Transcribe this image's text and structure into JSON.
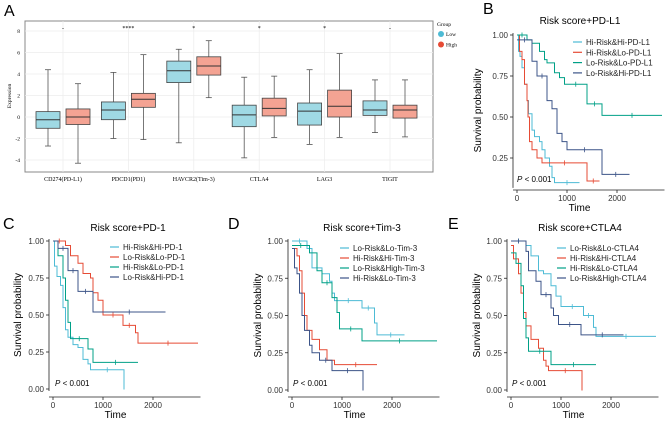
{
  "chart_data": [
    {
      "panel": "A",
      "type": "box",
      "ylabel": "Expression",
      "ylim": [
        -5,
        9
      ],
      "yticks": [
        -4,
        -2,
        0,
        2,
        4,
        6,
        8
      ],
      "grid": true,
      "legend": {
        "title": "Group",
        "placement": "right",
        "entries": [
          {
            "name": "Low",
            "color": "#4dbbd5"
          },
          {
            "name": "High",
            "color": "#e64b35"
          }
        ]
      },
      "box_colors": {
        "Low": "#9fd9e4",
        "High": "#f4a393"
      },
      "categories": [
        "CD274(PD-L1)",
        "PDCD1(PD1)",
        "HAVCR2(Tim-3)",
        "CTLA4",
        "LAG3",
        "TIGIT"
      ],
      "significance": [
        "-",
        "****",
        "*",
        "*",
        "*",
        "-"
      ],
      "series": [
        {
          "name": "Low",
          "stats": [
            [
              -2.7,
              -1.05,
              -0.25,
              0.5,
              4.4
            ],
            [
              -2.0,
              -0.25,
              0.65,
              1.4,
              4.15
            ],
            [
              -2.4,
              3.2,
              4.3,
              5.2,
              6.3
            ],
            [
              -3.8,
              -0.9,
              0.2,
              1.1,
              3.7
            ],
            [
              -2.55,
              -0.75,
              0.55,
              1.3,
              4.4
            ],
            [
              -1.45,
              0.15,
              0.65,
              1.5,
              3.45
            ]
          ]
        },
        {
          "name": "High",
          "stats": [
            [
              -4.3,
              -0.7,
              0.0,
              0.75,
              3.1
            ],
            [
              -2.1,
              0.9,
              1.65,
              2.2,
              5.8
            ],
            [
              1.8,
              3.9,
              4.75,
              5.6,
              7.1
            ],
            [
              -1.9,
              0.1,
              0.8,
              1.75,
              3.8
            ],
            [
              -1.9,
              0.0,
              1.0,
              2.5,
              5.9
            ],
            [
              -1.85,
              -0.1,
              0.65,
              1.1,
              3.45
            ]
          ]
        }
      ]
    },
    {
      "panel": "B",
      "type": "line",
      "title": "Risk score+PD-L1",
      "xlabel": "Time",
      "ylabel": "Survival probability",
      "xticks": [
        0,
        1000,
        2000
      ],
      "yticks": [
        0.25,
        0.5,
        0.75,
        1.0
      ],
      "ylim": [
        0.08,
        1.0
      ],
      "pvalue": "< 0.001",
      "pvalue_label": "P",
      "legend_placement": "top-right",
      "series": [
        {
          "name": "Hi-Risk&Hi-PD-L1",
          "color": "#4dbbd5",
          "end": 1250,
          "steps": [
            [
              0,
              1
            ],
            [
              30,
              0.9
            ],
            [
              60,
              0.87
            ],
            [
              100,
              0.8
            ],
            [
              150,
              0.7
            ],
            [
              200,
              0.6
            ],
            [
              230,
              0.52
            ],
            [
              300,
              0.42
            ],
            [
              350,
              0.38
            ],
            [
              450,
              0.35
            ],
            [
              500,
              0.3
            ],
            [
              560,
              0.25
            ],
            [
              650,
              0.2
            ],
            [
              700,
              0.13
            ],
            [
              750,
              0.1
            ]
          ]
        },
        {
          "name": "Hi-Risk&Lo-PD-L1",
          "color": "#e64b35",
          "end": 1650,
          "steps": [
            [
              0,
              1
            ],
            [
              50,
              0.9
            ],
            [
              100,
              0.85
            ],
            [
              150,
              0.7
            ],
            [
              200,
              0.6
            ],
            [
              220,
              0.5
            ],
            [
              250,
              0.35
            ],
            [
              300,
              0.3
            ],
            [
              400,
              0.25
            ],
            [
              500,
              0.22
            ],
            [
              1400,
              0.11
            ]
          ]
        },
        {
          "name": "Lo-Risk&Lo-PD-L1",
          "color": "#00a087",
          "end": 2900,
          "steps": [
            [
              0,
              1
            ],
            [
              200,
              0.97
            ],
            [
              300,
              0.95
            ],
            [
              450,
              0.9
            ],
            [
              550,
              0.85
            ],
            [
              600,
              0.83
            ],
            [
              750,
              0.77
            ],
            [
              850,
              0.74
            ],
            [
              950,
              0.7
            ],
            [
              1400,
              0.58
            ],
            [
              1700,
              0.51
            ]
          ]
        },
        {
          "name": "Lo-Risk&Hi-PD-L1",
          "color": "#3c5488",
          "end": 2250,
          "steps": [
            [
              0,
              0.97
            ],
            [
              300,
              0.84
            ],
            [
              400,
              0.75
            ],
            [
              600,
              0.6
            ],
            [
              700,
              0.55
            ],
            [
              800,
              0.4
            ],
            [
              900,
              0.35
            ],
            [
              1000,
              0.3
            ],
            [
              1700,
              0.15
            ]
          ]
        }
      ]
    },
    {
      "panel": "C",
      "type": "line",
      "title": "Risk score+PD-1",
      "xlabel": "Time",
      "ylabel": "Survival probability",
      "xticks": [
        0,
        1000,
        2000
      ],
      "yticks": [
        0,
        0.25,
        0.5,
        0.75,
        1.0
      ],
      "ylim": [
        0,
        1.0
      ],
      "pvalue": "< 0.001",
      "pvalue_label": "P",
      "legend_placement": "top-right",
      "series": [
        {
          "name": "Hi-Risk&Hi-PD-1",
          "color": "#4dbbd5",
          "end": 1430,
          "steps": [
            [
              0,
              1
            ],
            [
              30,
              0.83
            ],
            [
              80,
              0.76
            ],
            [
              150,
              0.7
            ],
            [
              200,
              0.55
            ],
            [
              250,
              0.4
            ],
            [
              300,
              0.35
            ],
            [
              400,
              0.3
            ],
            [
              500,
              0.28
            ],
            [
              600,
              0.2
            ],
            [
              700,
              0.17
            ],
            [
              750,
              0.13
            ],
            [
              1420,
              0.0
            ]
          ]
        },
        {
          "name": "Lo-Risk&Lo-PD-1",
          "color": "#e64b35",
          "end": 2900,
          "steps": [
            [
              0,
              1
            ],
            [
              250,
              0.97
            ],
            [
              350,
              0.9
            ],
            [
              500,
              0.85
            ],
            [
              600,
              0.78
            ],
            [
              750,
              0.75
            ],
            [
              800,
              0.65
            ],
            [
              900,
              0.6
            ],
            [
              1000,
              0.5
            ],
            [
              1400,
              0.43
            ],
            [
              1650,
              0.38
            ],
            [
              1700,
              0.31
            ]
          ]
        },
        {
          "name": "Hi-Risk&Lo-PD-1",
          "color": "#00a087",
          "end": 1700,
          "steps": [
            [
              0,
              1
            ],
            [
              100,
              0.9
            ],
            [
              200,
              0.75
            ],
            [
              250,
              0.6
            ],
            [
              300,
              0.45
            ],
            [
              350,
              0.34
            ],
            [
              700,
              0.27
            ],
            [
              800,
              0.18
            ]
          ]
        },
        {
          "name": "Lo-Risk&Hi-PD-1",
          "color": "#3c5488",
          "end": 2250,
          "steps": [
            [
              0,
              1
            ],
            [
              100,
              0.95
            ],
            [
              300,
              0.8
            ],
            [
              500,
              0.66
            ],
            [
              800,
              0.52
            ]
          ]
        }
      ]
    },
    {
      "panel": "D",
      "type": "line",
      "title": "Risk score+Tim-3",
      "xlabel": "Time",
      "ylabel": "Survival probability",
      "xticks": [
        0,
        1000,
        2000
      ],
      "yticks": [
        0,
        0.25,
        0.5,
        0.75,
        1.0
      ],
      "ylim": [
        0,
        1.0
      ],
      "pvalue": "< 0.001",
      "pvalue_label": "P",
      "legend_placement": "top-right",
      "series": [
        {
          "name": "Lo-Risk&Lo-Tim-3",
          "color": "#4dbbd5",
          "end": 2250,
          "steps": [
            [
              0,
              1
            ],
            [
              300,
              0.95
            ],
            [
              400,
              0.82
            ],
            [
              600,
              0.78
            ],
            [
              750,
              0.73
            ],
            [
              800,
              0.65
            ],
            [
              850,
              0.6
            ],
            [
              1400,
              0.55
            ],
            [
              1650,
              0.45
            ],
            [
              1700,
              0.37
            ]
          ]
        },
        {
          "name": "Hi-Risk&Hi-Tim-3",
          "color": "#e64b35",
          "end": 1700,
          "steps": [
            [
              0,
              0.95
            ],
            [
              100,
              0.9
            ],
            [
              150,
              0.8
            ],
            [
              200,
              0.65
            ],
            [
              250,
              0.5
            ],
            [
              300,
              0.4
            ],
            [
              400,
              0.34
            ],
            [
              550,
              0.27
            ],
            [
              700,
              0.2
            ],
            [
              850,
              0.17
            ]
          ]
        },
        {
          "name": "Lo-Risk&High-Tim-3",
          "color": "#00a087",
          "end": 2900,
          "steps": [
            [
              0,
              0.97
            ],
            [
              350,
              0.92
            ],
            [
              500,
              0.8
            ],
            [
              600,
              0.72
            ],
            [
              800,
              0.62
            ],
            [
              900,
              0.52
            ],
            [
              950,
              0.41
            ],
            [
              1400,
              0.33
            ]
          ]
        },
        {
          "name": "Hi-Risk&Lo-Tim-3",
          "color": "#3c5488",
          "end": 1430,
          "steps": [
            [
              0,
              0.95
            ],
            [
              50,
              0.82
            ],
            [
              100,
              0.78
            ],
            [
              150,
              0.65
            ],
            [
              200,
              0.5
            ],
            [
              250,
              0.4
            ],
            [
              350,
              0.3
            ],
            [
              400,
              0.25
            ],
            [
              550,
              0.2
            ],
            [
              800,
              0.13
            ],
            [
              1420,
              0.0
            ]
          ]
        }
      ]
    },
    {
      "panel": "E",
      "type": "line",
      "title": "Risk score+CTLA4",
      "xlabel": "Time",
      "ylabel": "Survival probability",
      "xticks": [
        0,
        1000,
        2000
      ],
      "yticks": [
        0,
        0.25,
        0.5,
        0.75,
        1.0
      ],
      "ylim": [
        0,
        1.0
      ],
      "pvalue": "< 0.001",
      "pvalue_label": "P",
      "legend_placement": "top-right",
      "series": [
        {
          "name": "Lo-Risk&Lo-CTLA4",
          "color": "#4dbbd5",
          "end": 2900,
          "steps": [
            [
              0,
              1
            ],
            [
              300,
              0.97
            ],
            [
              400,
              0.9
            ],
            [
              550,
              0.8
            ],
            [
              650,
              0.78
            ],
            [
              800,
              0.7
            ],
            [
              900,
              0.63
            ],
            [
              1000,
              0.56
            ],
            [
              1450,
              0.5
            ],
            [
              1650,
              0.42
            ],
            [
              1700,
              0.36
            ]
          ]
        },
        {
          "name": "Hi-Risk&Hi-CTLA4",
          "color": "#e64b35",
          "end": 1430,
          "steps": [
            [
              0,
              0.97
            ],
            [
              50,
              0.88
            ],
            [
              150,
              0.78
            ],
            [
              200,
              0.65
            ],
            [
              250,
              0.52
            ],
            [
              300,
              0.43
            ],
            [
              400,
              0.34
            ],
            [
              550,
              0.28
            ],
            [
              650,
              0.2
            ],
            [
              700,
              0.16
            ],
            [
              750,
              0.13
            ],
            [
              1420,
              0.0
            ]
          ]
        },
        {
          "name": "Hi-Risk&Lo-CTLA4",
          "color": "#00a087",
          "end": 1700,
          "steps": [
            [
              0,
              0.92
            ],
            [
              100,
              0.85
            ],
            [
              200,
              0.7
            ],
            [
              250,
              0.48
            ],
            [
              300,
              0.35
            ],
            [
              350,
              0.26
            ],
            [
              800,
              0.17
            ]
          ]
        },
        {
          "name": "Lo-Risk&High-CTLA4",
          "color": "#3c5488",
          "end": 2250,
          "steps": [
            [
              0,
              1
            ],
            [
              300,
              0.93
            ],
            [
              350,
              0.8
            ],
            [
              500,
              0.73
            ],
            [
              600,
              0.64
            ],
            [
              800,
              0.55
            ],
            [
              850,
              0.5
            ],
            [
              950,
              0.44
            ],
            [
              1400,
              0.37
            ]
          ]
        }
      ]
    }
  ]
}
